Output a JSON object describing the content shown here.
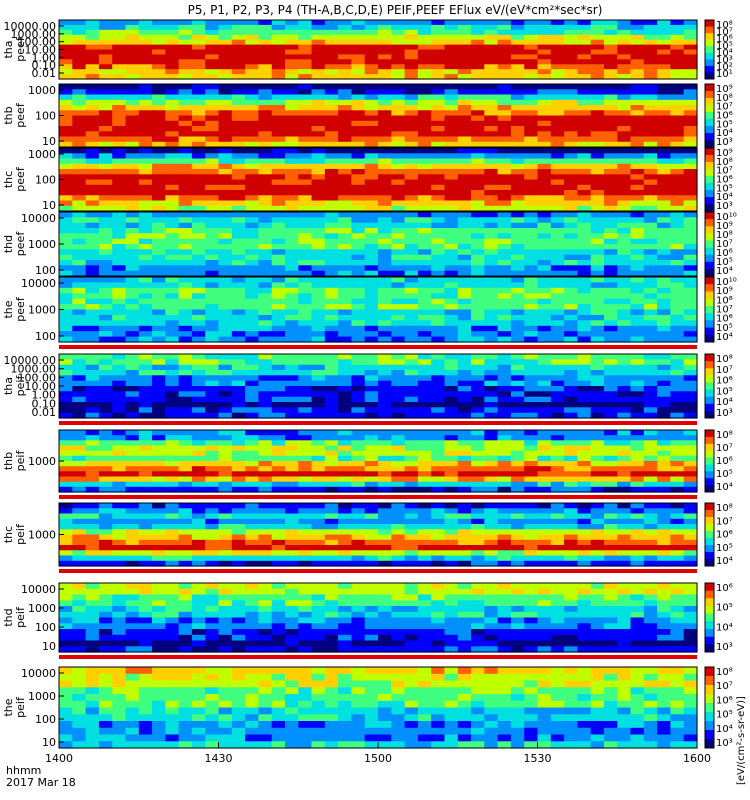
{
  "chart_data": {
    "type": "heatmap",
    "title": "P5, P1, P2, P3, P4 (TH-A,B,C,D,E) PEIF,PEEF EFlux eV/(eV*cm²*sec*sr)",
    "time_axis": {
      "label_line1": "hhmm",
      "label_line2": "2017 Mar 18",
      "ticks": [
        "1400",
        "1430",
        "1500",
        "1530",
        "1600"
      ],
      "range_minutes": [
        0,
        120
      ]
    },
    "colorbar_unit": "[eV/(cm²-s-sr-eV)]",
    "colorscale": [
      "#000080",
      "#0000ff",
      "#0090ff",
      "#00e0e0",
      "#40ff80",
      "#c0ff00",
      "#ffd000",
      "#ff6000",
      "#d00000"
    ],
    "panels": [
      {
        "probe": "tha",
        "product": "peef",
        "yticks": [
          "10000.00",
          "1000.00",
          "100.00",
          "10.00",
          "1.00",
          "0.10",
          "0.01"
        ],
        "cbticks": [
          "10⁸",
          "10⁷",
          "10⁶",
          "10⁵",
          "10⁴",
          "10³",
          "10²",
          "10¹"
        ]
      },
      {
        "probe": "thb",
        "product": "peef",
        "yticks": [
          "1000",
          "100",
          "10"
        ],
        "cbticks": [
          "10⁹",
          "10⁸",
          "10⁷",
          "10⁶",
          "10⁵",
          "10⁴",
          "10³"
        ]
      },
      {
        "probe": "thc",
        "product": "peef",
        "yticks": [
          "1000",
          "100",
          "10"
        ],
        "cbticks": [
          "10⁹",
          "10⁸",
          "10⁷",
          "10⁶",
          "10⁵",
          "10⁴",
          "10³"
        ]
      },
      {
        "probe": "thd",
        "product": "peef",
        "yticks": [
          "10000",
          "1000",
          "100"
        ],
        "cbticks": [
          "10¹⁰",
          "10⁹",
          "10⁸",
          "10⁷",
          "10⁶",
          "10⁵",
          "10⁴"
        ]
      },
      {
        "probe": "the",
        "product": "peef",
        "yticks": [
          "10000",
          "1000",
          "100"
        ],
        "cbticks": [
          "10¹⁰",
          "10⁹",
          "10⁸",
          "10⁷",
          "10⁶",
          "10⁵",
          "10⁴"
        ]
      },
      {
        "probe": "tha",
        "product": "peif",
        "yticks": [
          "10000.00",
          "1000.00",
          "100.00",
          "10.00",
          "1.00",
          "0.10",
          "0.01"
        ],
        "cbticks": [
          "10⁸",
          "10⁷",
          "10⁶",
          "10⁵",
          "10⁴",
          "10³"
        ]
      },
      {
        "probe": "thb",
        "product": "peif",
        "yticks": [
          "1000"
        ],
        "cbticks": [
          "10⁸",
          "10⁷",
          "10⁶",
          "10⁵",
          "10⁴"
        ]
      },
      {
        "probe": "thc",
        "product": "peif",
        "yticks": [
          "1000"
        ],
        "cbticks": [
          "10⁸",
          "10⁷",
          "10⁶",
          "10⁵",
          "10⁴"
        ]
      },
      {
        "probe": "thd",
        "product": "peif",
        "yticks": [
          "10000",
          "1000",
          "100",
          "10"
        ],
        "cbticks": [
          "10⁶",
          "10⁵",
          "10⁴",
          "10³"
        ]
      },
      {
        "probe": "the",
        "product": "peif",
        "yticks": [
          "10000",
          "1000",
          "100",
          "10"
        ],
        "cbticks": [
          "10⁸",
          "10⁷",
          "10⁶",
          "10⁵",
          "10⁴",
          "10³"
        ]
      }
    ]
  }
}
